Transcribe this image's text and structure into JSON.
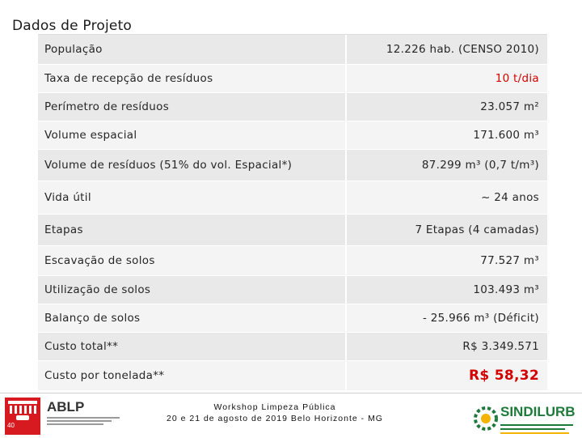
{
  "title": "Dados de Projeto",
  "rows": [
    {
      "label": "População",
      "value": "12.226 hab. (CENSO 2010)"
    },
    {
      "label": "Taxa de recepção de resíduos",
      "value": "10 t/dia"
    },
    {
      "label": "Perímetro de resíduos",
      "value": "23.057 m²"
    },
    {
      "label": "Volume espacial",
      "value": "171.600 m³"
    },
    {
      "label": "Volume de resíduos (51% do vol. Espacial*)",
      "value": "87.299 m³ (0,7 t/m³)"
    },
    {
      "label": "Vida útil",
      "value": "~ 24 anos"
    },
    {
      "label": "Etapas",
      "value": "7 Etapas (4 camadas)"
    },
    {
      "label": "Escavação de solos",
      "value": "77.527 m³"
    },
    {
      "label": "Utilização de solos",
      "value": "103.493 m³"
    },
    {
      "label": "Balanço de solos",
      "value": "- 25.966 m³ (Déficit)"
    },
    {
      "label": "Custo total**",
      "value": "R$ 3.349.571"
    },
    {
      "label": "Custo por tonelada**",
      "value": "R$ 58,32"
    }
  ],
  "footer": {
    "event_line1": "Workshop Limpeza Pública",
    "event_line2": "20 e 21 de agosto de 2019 Belo Horizonte - MG",
    "left_logo": "ABLP",
    "page_number": "40",
    "right_logo": "SINDILURB"
  },
  "colors": {
    "accent_red": "#d40000",
    "brand_green": "#1d7a3a"
  }
}
